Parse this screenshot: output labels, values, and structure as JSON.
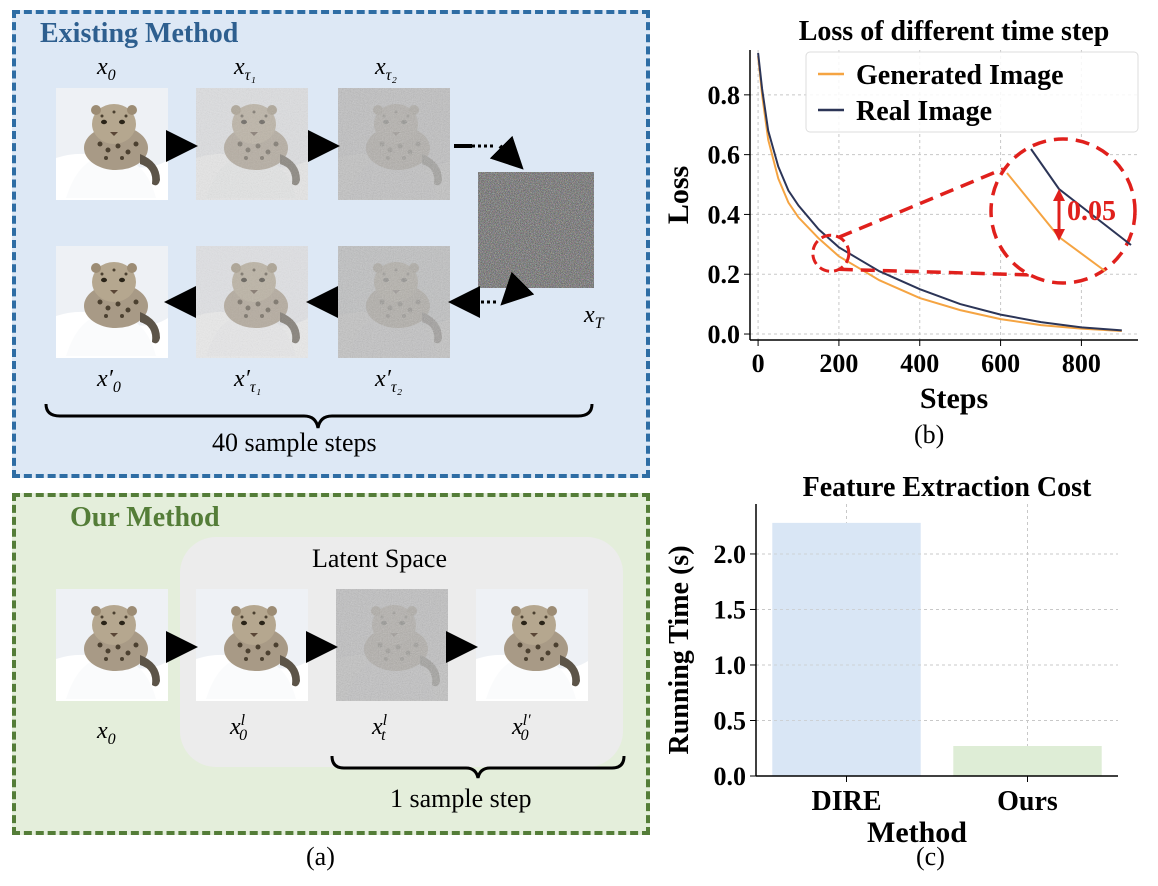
{
  "figure_a": {
    "existing": {
      "title": "Existing Method",
      "top_row_labels": [
        "x",
        "x",
        "x"
      ],
      "labels": {
        "x0": {
          "base": "x",
          "sub": "0"
        },
        "xt1": {
          "base": "x",
          "sub": "τ₁"
        },
        "xt2": {
          "base": "x",
          "sub": "τ₂"
        },
        "xT": {
          "base": "x",
          "sub": "T"
        },
        "x0p": {
          "base": "x′",
          "sub": "0"
        },
        "xt1p": {
          "base": "x′",
          "sub": "τ₁"
        },
        "xt2p": {
          "base": "x′",
          "sub": "τ₂"
        }
      },
      "steps_caption": "40 sample steps"
    },
    "ours": {
      "title": "Our Method",
      "latent_label": "Latent Space",
      "labels": {
        "x0": {
          "base": "x",
          "sub": "0"
        },
        "xl0": {
          "base": "x",
          "sub": "0",
          "sup": "l"
        },
        "xlt": {
          "base": "x",
          "sub": "t",
          "sup": "l"
        },
        "xl0p": {
          "base": "x",
          "sub": "0",
          "sup": "l′"
        }
      },
      "steps_caption": "1 sample step"
    },
    "sublabel": "(a)"
  },
  "figure_b": {
    "sublabel": "(b)",
    "annotation": "0.05",
    "chart_data": {
      "type": "line",
      "title": "Loss of different time step",
      "xlabel": "Steps",
      "ylabel": "Loss",
      "xlim": [
        -20,
        940
      ],
      "ylim": [
        -0.02,
        0.95
      ],
      "xticks": [
        0,
        200,
        400,
        600,
        800
      ],
      "yticks": [
        0.0,
        0.2,
        0.4,
        0.6,
        0.8
      ],
      "grid": true,
      "legend": "top-right",
      "series": [
        {
          "name": "Generated Image",
          "color": "#f5a442",
          "x": [
            0,
            10,
            25,
            50,
            75,
            100,
            150,
            200,
            250,
            300,
            400,
            500,
            600,
            700,
            800,
            900
          ],
          "y": [
            0.93,
            0.8,
            0.65,
            0.52,
            0.44,
            0.39,
            0.32,
            0.26,
            0.22,
            0.18,
            0.12,
            0.08,
            0.05,
            0.03,
            0.018,
            0.01
          ]
        },
        {
          "name": "Real Image",
          "color": "#2c3557",
          "x": [
            0,
            10,
            25,
            50,
            75,
            100,
            150,
            200,
            250,
            300,
            400,
            500,
            600,
            700,
            800,
            900
          ],
          "y": [
            0.94,
            0.82,
            0.68,
            0.56,
            0.48,
            0.43,
            0.35,
            0.29,
            0.25,
            0.21,
            0.15,
            0.1,
            0.065,
            0.04,
            0.022,
            0.012
          ]
        }
      ]
    }
  },
  "figure_c": {
    "sublabel": "(c)",
    "chart_data": {
      "type": "bar",
      "title": "Feature Extraction Cost",
      "xlabel": "Method",
      "ylabel": "Running Time (s)",
      "categories": [
        "DIRE",
        "Ours"
      ],
      "values": [
        2.28,
        0.27
      ],
      "colors": [
        "#d9e6f5",
        "#deedd6"
      ],
      "ylim": [
        0,
        2.45
      ],
      "yticks": [
        0.0,
        0.5,
        1.0,
        1.5,
        2.0
      ],
      "grid": true
    }
  }
}
